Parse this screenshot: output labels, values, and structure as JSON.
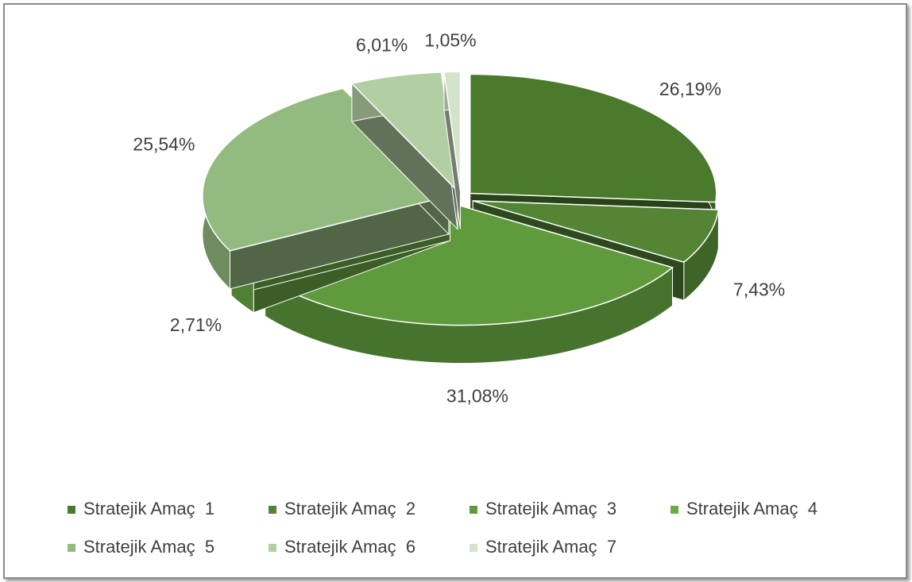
{
  "chart_data": {
    "type": "pie",
    "categories": [
      "Stratejik Amaç  1",
      "Stratejik Amaç  2",
      "Stratejik Amaç  3",
      "Stratejik Amaç  4",
      "Stratejik Amaç  5",
      "Stratejik Amaç  6",
      "Stratejik Amaç  7"
    ],
    "values": [
      26.19,
      7.43,
      31.08,
      2.71,
      25.54,
      6.01,
      1.05
    ],
    "value_labels": [
      "26,19%",
      "7,43%",
      "31,08%",
      "2,71%",
      "25,54%",
      "6,01%",
      "1,05%"
    ],
    "colors": [
      "#4a7a2c",
      "#548535",
      "#5f9a3c",
      "#6aab44",
      "#93ba7f",
      "#b2cfa3",
      "#d3e4ca"
    ],
    "legend": "bottom"
  }
}
